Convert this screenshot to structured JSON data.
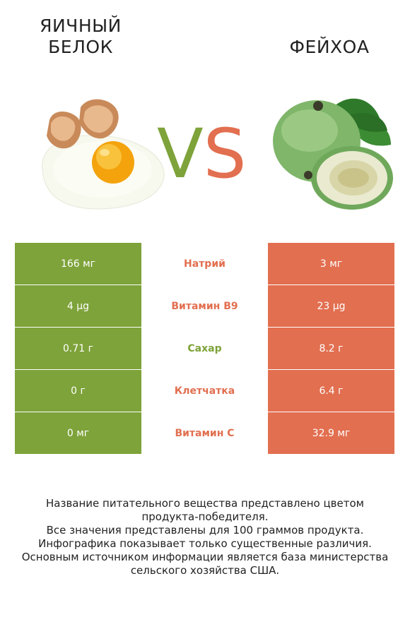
{
  "header": {
    "left_title": [
      "ЯИЧНЫЙ",
      "БЕЛОК"
    ],
    "right_title": [
      "ФЕЙХОА"
    ],
    "vs_v": "V",
    "vs_s": "S"
  },
  "colors": {
    "left": "#7ea33a",
    "right": "#e26f50"
  },
  "rows": [
    {
      "left": "166 мг",
      "nutrient": "Натрий",
      "right": "3 мг",
      "winner": "right"
    },
    {
      "left": "4 µg",
      "nutrient": "Витамин B9",
      "right": "23 µg",
      "winner": "right"
    },
    {
      "left": "0.71 г",
      "nutrient": "Сахар",
      "right": "8.2 г",
      "winner": "left"
    },
    {
      "left": "0 г",
      "nutrient": "Клетчатка",
      "right": "6.4 г",
      "winner": "right"
    },
    {
      "left": "0 мг",
      "nutrient": "Витамин C",
      "right": "32.9 мг",
      "winner": "right"
    }
  ],
  "footnote": {
    "line1": "Название питательного вещества представлено цветом",
    "line2": "продукта-победителя.",
    "line3": "Все значения представлены для 100 граммов продукта.",
    "line4": "Инфографика показывает только существенные различия.",
    "line5": "Основным источником информации является база министерства",
    "line6": "сельского хозяйства США."
  },
  "images": {
    "left": "egg-icon",
    "right": "feijoa-icon"
  }
}
